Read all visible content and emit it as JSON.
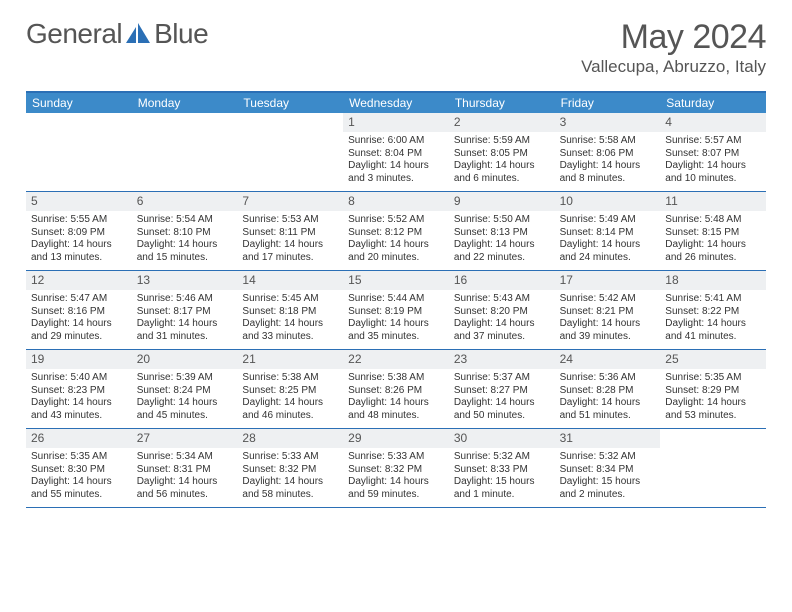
{
  "logo": {
    "left": "General",
    "right": "Blue"
  },
  "title": {
    "month": "May 2024",
    "location": "Vallecupa, Abruzzo, Italy"
  },
  "colors": {
    "header_bar": "#3c8ac9",
    "accent_line": "#2b6fb5",
    "daynum_bg": "#eef0f2",
    "text": "#333333",
    "muted": "#555555"
  },
  "day_names": [
    "Sunday",
    "Monday",
    "Tuesday",
    "Wednesday",
    "Thursday",
    "Friday",
    "Saturday"
  ],
  "weeks": [
    [
      {
        "num": "",
        "sunrise": "",
        "sunset": "",
        "daylight": ""
      },
      {
        "num": "",
        "sunrise": "",
        "sunset": "",
        "daylight": ""
      },
      {
        "num": "",
        "sunrise": "",
        "sunset": "",
        "daylight": ""
      },
      {
        "num": "1",
        "sunrise": "Sunrise: 6:00 AM",
        "sunset": "Sunset: 8:04 PM",
        "daylight": "Daylight: 14 hours and 3 minutes."
      },
      {
        "num": "2",
        "sunrise": "Sunrise: 5:59 AM",
        "sunset": "Sunset: 8:05 PM",
        "daylight": "Daylight: 14 hours and 6 minutes."
      },
      {
        "num": "3",
        "sunrise": "Sunrise: 5:58 AM",
        "sunset": "Sunset: 8:06 PM",
        "daylight": "Daylight: 14 hours and 8 minutes."
      },
      {
        "num": "4",
        "sunrise": "Sunrise: 5:57 AM",
        "sunset": "Sunset: 8:07 PM",
        "daylight": "Daylight: 14 hours and 10 minutes."
      }
    ],
    [
      {
        "num": "5",
        "sunrise": "Sunrise: 5:55 AM",
        "sunset": "Sunset: 8:09 PM",
        "daylight": "Daylight: 14 hours and 13 minutes."
      },
      {
        "num": "6",
        "sunrise": "Sunrise: 5:54 AM",
        "sunset": "Sunset: 8:10 PM",
        "daylight": "Daylight: 14 hours and 15 minutes."
      },
      {
        "num": "7",
        "sunrise": "Sunrise: 5:53 AM",
        "sunset": "Sunset: 8:11 PM",
        "daylight": "Daylight: 14 hours and 17 minutes."
      },
      {
        "num": "8",
        "sunrise": "Sunrise: 5:52 AM",
        "sunset": "Sunset: 8:12 PM",
        "daylight": "Daylight: 14 hours and 20 minutes."
      },
      {
        "num": "9",
        "sunrise": "Sunrise: 5:50 AM",
        "sunset": "Sunset: 8:13 PM",
        "daylight": "Daylight: 14 hours and 22 minutes."
      },
      {
        "num": "10",
        "sunrise": "Sunrise: 5:49 AM",
        "sunset": "Sunset: 8:14 PM",
        "daylight": "Daylight: 14 hours and 24 minutes."
      },
      {
        "num": "11",
        "sunrise": "Sunrise: 5:48 AM",
        "sunset": "Sunset: 8:15 PM",
        "daylight": "Daylight: 14 hours and 26 minutes."
      }
    ],
    [
      {
        "num": "12",
        "sunrise": "Sunrise: 5:47 AM",
        "sunset": "Sunset: 8:16 PM",
        "daylight": "Daylight: 14 hours and 29 minutes."
      },
      {
        "num": "13",
        "sunrise": "Sunrise: 5:46 AM",
        "sunset": "Sunset: 8:17 PM",
        "daylight": "Daylight: 14 hours and 31 minutes."
      },
      {
        "num": "14",
        "sunrise": "Sunrise: 5:45 AM",
        "sunset": "Sunset: 8:18 PM",
        "daylight": "Daylight: 14 hours and 33 minutes."
      },
      {
        "num": "15",
        "sunrise": "Sunrise: 5:44 AM",
        "sunset": "Sunset: 8:19 PM",
        "daylight": "Daylight: 14 hours and 35 minutes."
      },
      {
        "num": "16",
        "sunrise": "Sunrise: 5:43 AM",
        "sunset": "Sunset: 8:20 PM",
        "daylight": "Daylight: 14 hours and 37 minutes."
      },
      {
        "num": "17",
        "sunrise": "Sunrise: 5:42 AM",
        "sunset": "Sunset: 8:21 PM",
        "daylight": "Daylight: 14 hours and 39 minutes."
      },
      {
        "num": "18",
        "sunrise": "Sunrise: 5:41 AM",
        "sunset": "Sunset: 8:22 PM",
        "daylight": "Daylight: 14 hours and 41 minutes."
      }
    ],
    [
      {
        "num": "19",
        "sunrise": "Sunrise: 5:40 AM",
        "sunset": "Sunset: 8:23 PM",
        "daylight": "Daylight: 14 hours and 43 minutes."
      },
      {
        "num": "20",
        "sunrise": "Sunrise: 5:39 AM",
        "sunset": "Sunset: 8:24 PM",
        "daylight": "Daylight: 14 hours and 45 minutes."
      },
      {
        "num": "21",
        "sunrise": "Sunrise: 5:38 AM",
        "sunset": "Sunset: 8:25 PM",
        "daylight": "Daylight: 14 hours and 46 minutes."
      },
      {
        "num": "22",
        "sunrise": "Sunrise: 5:38 AM",
        "sunset": "Sunset: 8:26 PM",
        "daylight": "Daylight: 14 hours and 48 minutes."
      },
      {
        "num": "23",
        "sunrise": "Sunrise: 5:37 AM",
        "sunset": "Sunset: 8:27 PM",
        "daylight": "Daylight: 14 hours and 50 minutes."
      },
      {
        "num": "24",
        "sunrise": "Sunrise: 5:36 AM",
        "sunset": "Sunset: 8:28 PM",
        "daylight": "Daylight: 14 hours and 51 minutes."
      },
      {
        "num": "25",
        "sunrise": "Sunrise: 5:35 AM",
        "sunset": "Sunset: 8:29 PM",
        "daylight": "Daylight: 14 hours and 53 minutes."
      }
    ],
    [
      {
        "num": "26",
        "sunrise": "Sunrise: 5:35 AM",
        "sunset": "Sunset: 8:30 PM",
        "daylight": "Daylight: 14 hours and 55 minutes."
      },
      {
        "num": "27",
        "sunrise": "Sunrise: 5:34 AM",
        "sunset": "Sunset: 8:31 PM",
        "daylight": "Daylight: 14 hours and 56 minutes."
      },
      {
        "num": "28",
        "sunrise": "Sunrise: 5:33 AM",
        "sunset": "Sunset: 8:32 PM",
        "daylight": "Daylight: 14 hours and 58 minutes."
      },
      {
        "num": "29",
        "sunrise": "Sunrise: 5:33 AM",
        "sunset": "Sunset: 8:32 PM",
        "daylight": "Daylight: 14 hours and 59 minutes."
      },
      {
        "num": "30",
        "sunrise": "Sunrise: 5:32 AM",
        "sunset": "Sunset: 8:33 PM",
        "daylight": "Daylight: 15 hours and 1 minute."
      },
      {
        "num": "31",
        "sunrise": "Sunrise: 5:32 AM",
        "sunset": "Sunset: 8:34 PM",
        "daylight": "Daylight: 15 hours and 2 minutes."
      },
      {
        "num": "",
        "sunrise": "",
        "sunset": "",
        "daylight": ""
      }
    ]
  ]
}
